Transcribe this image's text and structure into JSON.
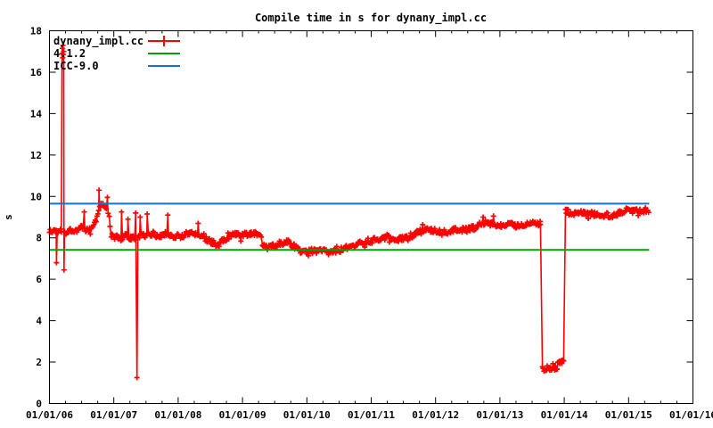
{
  "chart_data": {
    "type": "scatter",
    "title": "Compile time in s for dynany_impl.cc",
    "ylabel": "s",
    "ylim": [
      0,
      18
    ],
    "ytick_step": 2,
    "x_year_start": 2006,
    "x_year_span": 10,
    "xtick_labels": [
      "01/01/06",
      "01/01/07",
      "01/01/08",
      "01/01/09",
      "01/01/10",
      "01/01/11",
      "01/01/12",
      "01/01/13",
      "01/01/14",
      "01/01/15",
      "01/01/16"
    ],
    "grid": false,
    "legend_position": "top-left-inside",
    "axis_color": "#000000",
    "background": "#ffffff",
    "series": [
      {
        "name": "dynany_impl.cc",
        "type": "linespoints",
        "marker": "plus",
        "color": "#ff0000",
        "band_noise": 0.13,
        "anchors": [
          [
            2006.0,
            8.35
          ],
          [
            2006.04,
            8.25
          ],
          [
            2006.08,
            8.4
          ],
          [
            2006.12,
            8.3
          ],
          [
            2006.16,
            8.35
          ],
          [
            2006.2,
            8.4
          ],
          [
            2006.25,
            8.3
          ],
          [
            2006.3,
            8.3
          ],
          [
            2006.35,
            8.4
          ],
          [
            2006.4,
            8.35
          ],
          [
            2006.45,
            8.45
          ],
          [
            2006.5,
            8.5
          ],
          [
            2006.55,
            8.4
          ],
          [
            2006.6,
            8.35
          ],
          [
            2006.65,
            8.45
          ],
          [
            2006.7,
            8.7
          ],
          [
            2006.74,
            9.0
          ],
          [
            2006.78,
            9.45
          ],
          [
            2006.82,
            9.65
          ],
          [
            2006.86,
            9.5
          ],
          [
            2006.9,
            9.4
          ],
          [
            2006.93,
            9.0
          ],
          [
            2006.96,
            8.15
          ],
          [
            2007.0,
            8.0
          ],
          [
            2007.05,
            8.05
          ],
          [
            2007.1,
            7.95
          ],
          [
            2007.15,
            8.05
          ],
          [
            2007.2,
            8.1
          ],
          [
            2007.25,
            7.95
          ],
          [
            2007.3,
            8.0
          ],
          [
            2007.35,
            7.95
          ],
          [
            2007.4,
            8.05
          ],
          [
            2007.45,
            8.1
          ],
          [
            2007.5,
            8.1
          ],
          [
            2007.55,
            8.15
          ],
          [
            2007.6,
            8.2
          ],
          [
            2007.65,
            8.15
          ],
          [
            2007.7,
            8.1
          ],
          [
            2007.75,
            8.15
          ],
          [
            2007.8,
            8.2
          ],
          [
            2007.85,
            8.15
          ],
          [
            2007.9,
            8.1
          ],
          [
            2007.95,
            8.1
          ],
          [
            2008.0,
            8.1
          ],
          [
            2008.05,
            8.05
          ],
          [
            2008.1,
            8.15
          ],
          [
            2008.15,
            8.2
          ],
          [
            2008.2,
            8.25
          ],
          [
            2008.25,
            8.2
          ],
          [
            2008.3,
            8.2
          ],
          [
            2008.35,
            8.1
          ],
          [
            2008.4,
            8.0
          ],
          [
            2008.45,
            7.9
          ],
          [
            2008.5,
            7.85
          ],
          [
            2008.55,
            7.75
          ],
          [
            2008.6,
            7.6
          ],
          [
            2008.65,
            7.75
          ],
          [
            2008.7,
            7.9
          ],
          [
            2008.75,
            8.0
          ],
          [
            2008.8,
            8.1
          ],
          [
            2008.85,
            8.15
          ],
          [
            2008.9,
            8.15
          ],
          [
            2008.95,
            8.1
          ],
          [
            2009.0,
            8.1
          ],
          [
            2009.05,
            8.15
          ],
          [
            2009.1,
            8.2
          ],
          [
            2009.15,
            8.25
          ],
          [
            2009.2,
            8.2
          ],
          [
            2009.25,
            8.2
          ],
          [
            2009.28,
            8.15
          ],
          [
            2009.31,
            7.6
          ],
          [
            2009.35,
            7.55
          ],
          [
            2009.4,
            7.5
          ],
          [
            2009.45,
            7.55
          ],
          [
            2009.5,
            7.65
          ],
          [
            2009.55,
            7.7
          ],
          [
            2009.6,
            7.75
          ],
          [
            2009.65,
            7.8
          ],
          [
            2009.7,
            7.8
          ],
          [
            2009.75,
            7.7
          ],
          [
            2009.8,
            7.6
          ],
          [
            2009.85,
            7.45
          ],
          [
            2009.9,
            7.35
          ],
          [
            2009.95,
            7.35
          ],
          [
            2010.0,
            7.35
          ],
          [
            2010.05,
            7.4
          ],
          [
            2010.1,
            7.35
          ],
          [
            2010.15,
            7.35
          ],
          [
            2010.2,
            7.35
          ],
          [
            2010.25,
            7.4
          ],
          [
            2010.3,
            7.35
          ],
          [
            2010.35,
            7.3
          ],
          [
            2010.4,
            7.35
          ],
          [
            2010.45,
            7.4
          ],
          [
            2010.5,
            7.35
          ],
          [
            2010.55,
            7.45
          ],
          [
            2010.6,
            7.5
          ],
          [
            2010.65,
            7.5
          ],
          [
            2010.7,
            7.5
          ],
          [
            2010.75,
            7.6
          ],
          [
            2010.8,
            7.75
          ],
          [
            2010.85,
            7.8
          ],
          [
            2010.9,
            7.8
          ],
          [
            2010.95,
            7.85
          ],
          [
            2011.0,
            7.85
          ],
          [
            2011.05,
            7.9
          ],
          [
            2011.1,
            7.9
          ],
          [
            2011.15,
            7.9
          ],
          [
            2011.2,
            7.95
          ],
          [
            2011.26,
            8.15
          ],
          [
            2011.3,
            7.95
          ],
          [
            2011.35,
            7.9
          ],
          [
            2011.4,
            7.9
          ],
          [
            2011.45,
            7.95
          ],
          [
            2011.5,
            7.95
          ],
          [
            2011.55,
            8.0
          ],
          [
            2011.6,
            8.0
          ],
          [
            2011.65,
            8.1
          ],
          [
            2011.7,
            8.2
          ],
          [
            2011.75,
            8.3
          ],
          [
            2011.8,
            8.4
          ],
          [
            2011.85,
            8.4
          ],
          [
            2011.9,
            8.35
          ],
          [
            2011.95,
            8.35
          ],
          [
            2012.0,
            8.35
          ],
          [
            2012.05,
            8.35
          ],
          [
            2012.1,
            8.3
          ],
          [
            2012.15,
            8.35
          ],
          [
            2012.2,
            8.3
          ],
          [
            2012.25,
            8.35
          ],
          [
            2012.3,
            8.4
          ],
          [
            2012.35,
            8.35
          ],
          [
            2012.4,
            8.4
          ],
          [
            2012.45,
            8.4
          ],
          [
            2012.5,
            8.4
          ],
          [
            2012.55,
            8.45
          ],
          [
            2012.6,
            8.5
          ],
          [
            2012.65,
            8.55
          ],
          [
            2012.7,
            8.65
          ],
          [
            2012.75,
            8.7
          ],
          [
            2012.8,
            8.75
          ],
          [
            2012.85,
            8.7
          ],
          [
            2012.9,
            8.7
          ],
          [
            2012.95,
            8.65
          ],
          [
            2013.0,
            8.65
          ],
          [
            2013.05,
            8.6
          ],
          [
            2013.1,
            8.6
          ],
          [
            2013.15,
            8.65
          ],
          [
            2013.2,
            8.6
          ],
          [
            2013.25,
            8.6
          ],
          [
            2013.3,
            8.65
          ],
          [
            2013.35,
            8.65
          ],
          [
            2013.4,
            8.6
          ],
          [
            2013.45,
            8.65
          ],
          [
            2013.5,
            8.7
          ],
          [
            2013.55,
            8.7
          ],
          [
            2013.6,
            8.7
          ],
          [
            2013.63,
            8.7
          ],
          [
            2013.66,
            1.65
          ],
          [
            2013.7,
            1.6
          ],
          [
            2013.75,
            1.62
          ],
          [
            2013.8,
            1.65
          ],
          [
            2013.85,
            1.68
          ],
          [
            2013.89,
            1.72
          ],
          [
            2013.91,
            2.0
          ],
          [
            2013.95,
            2.05
          ],
          [
            2013.99,
            2.0
          ],
          [
            2014.02,
            9.3
          ],
          [
            2014.06,
            9.3
          ],
          [
            2014.1,
            9.25
          ],
          [
            2014.15,
            9.2
          ],
          [
            2014.2,
            9.2
          ],
          [
            2014.25,
            9.2
          ],
          [
            2014.3,
            9.2
          ],
          [
            2014.35,
            9.15
          ],
          [
            2014.4,
            9.2
          ],
          [
            2014.45,
            9.15
          ],
          [
            2014.5,
            9.1
          ],
          [
            2014.55,
            9.15
          ],
          [
            2014.6,
            9.1
          ],
          [
            2014.65,
            9.1
          ],
          [
            2014.7,
            9.1
          ],
          [
            2014.75,
            9.1
          ],
          [
            2014.8,
            9.15
          ],
          [
            2014.85,
            9.2
          ],
          [
            2014.9,
            9.25
          ],
          [
            2014.95,
            9.35
          ],
          [
            2014.98,
            9.45
          ],
          [
            2015.01,
            9.3
          ],
          [
            2015.05,
            9.3
          ],
          [
            2015.1,
            9.35
          ],
          [
            2015.15,
            9.35
          ],
          [
            2015.2,
            9.35
          ],
          [
            2015.25,
            9.35
          ],
          [
            2015.31,
            9.3
          ]
        ],
        "outliers": [
          [
            2006.11,
            6.8
          ],
          [
            2006.195,
            16.9
          ],
          [
            2006.2,
            17.15
          ],
          [
            2006.205,
            16.7
          ],
          [
            2006.21,
            17.3
          ],
          [
            2006.216,
            16.85
          ],
          [
            2006.221,
            17.0
          ],
          [
            2006.226,
            6.45
          ],
          [
            2006.54,
            9.25
          ],
          [
            2006.77,
            10.3
          ],
          [
            2006.9,
            9.95
          ],
          [
            2007.12,
            9.25
          ],
          [
            2007.22,
            8.9
          ],
          [
            2007.34,
            9.2
          ],
          [
            2007.36,
            1.25
          ],
          [
            2007.41,
            9.0
          ],
          [
            2007.52,
            9.15
          ],
          [
            2007.84,
            9.1
          ],
          [
            2008.31,
            8.7
          ],
          [
            2012.74,
            9.0
          ],
          [
            2012.9,
            9.05
          ]
        ]
      },
      {
        "name": "4.1.2",
        "type": "hline",
        "color": "#00a400",
        "value": 7.42,
        "x_start": 2006.0,
        "x_end": 2015.32
      },
      {
        "name": "ICC-9.0",
        "type": "hline",
        "color": "#0f74d8",
        "value": 9.65,
        "x_start": 2006.0,
        "x_end": 2015.32
      }
    ]
  }
}
